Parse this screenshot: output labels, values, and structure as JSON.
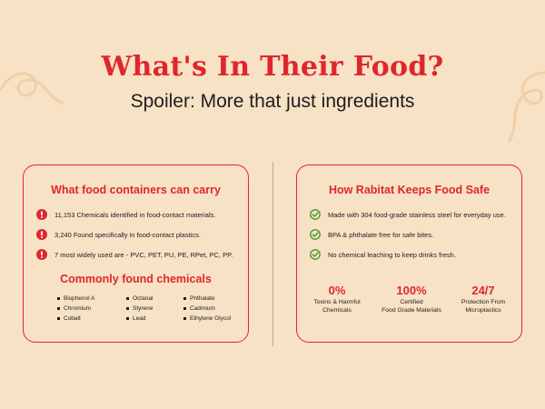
{
  "headline": "What's In Their Food?",
  "subtitle": "Spoiler: More that just ingredients",
  "colors": {
    "accent": "#e0262c",
    "background": "#f7e2c6",
    "check": "#4a9a2e"
  },
  "left_card": {
    "title": "What food containers can carry",
    "items": [
      {
        "icon": "alert-icon",
        "text": "11,153 Chemicals identified in food-contact materials."
      },
      {
        "icon": "alert-icon",
        "text": "3,240 Found specifically in food-contact plastics."
      },
      {
        "icon": "alert-icon",
        "text": "7 most widely used are - PVC, PET, PU, PE, RPet, PC, PP."
      }
    ],
    "sub_heading": "Commonly found chemicals",
    "chemicals": [
      [
        "Bisphenol A",
        "Chromium",
        "Cobalt"
      ],
      [
        "Octanal",
        "Styrene",
        "Lead"
      ],
      [
        "Phthalate",
        "Cadmium",
        "Ethylene Glycol"
      ]
    ]
  },
  "right_card": {
    "title": "How Rabitat Keeps Food Safe",
    "items": [
      {
        "icon": "check-icon",
        "text": "Made with 304 food-grade stainless steel for everyday use."
      },
      {
        "icon": "check-icon",
        "text": "BPA & phthalate free for safe bites."
      },
      {
        "icon": "check-icon",
        "text": "No chemical leaching to keep drinks fresh."
      }
    ],
    "stats": [
      {
        "value": "0%",
        "label_1": "Toxins & Harmful",
        "label_2": "Chemicals"
      },
      {
        "value": "100%",
        "label_1": "Certified",
        "label_2": "Food Grade Materials"
      },
      {
        "value": "24/7",
        "label_1": "Protection From",
        "label_2": "Microplastics"
      }
    ]
  }
}
